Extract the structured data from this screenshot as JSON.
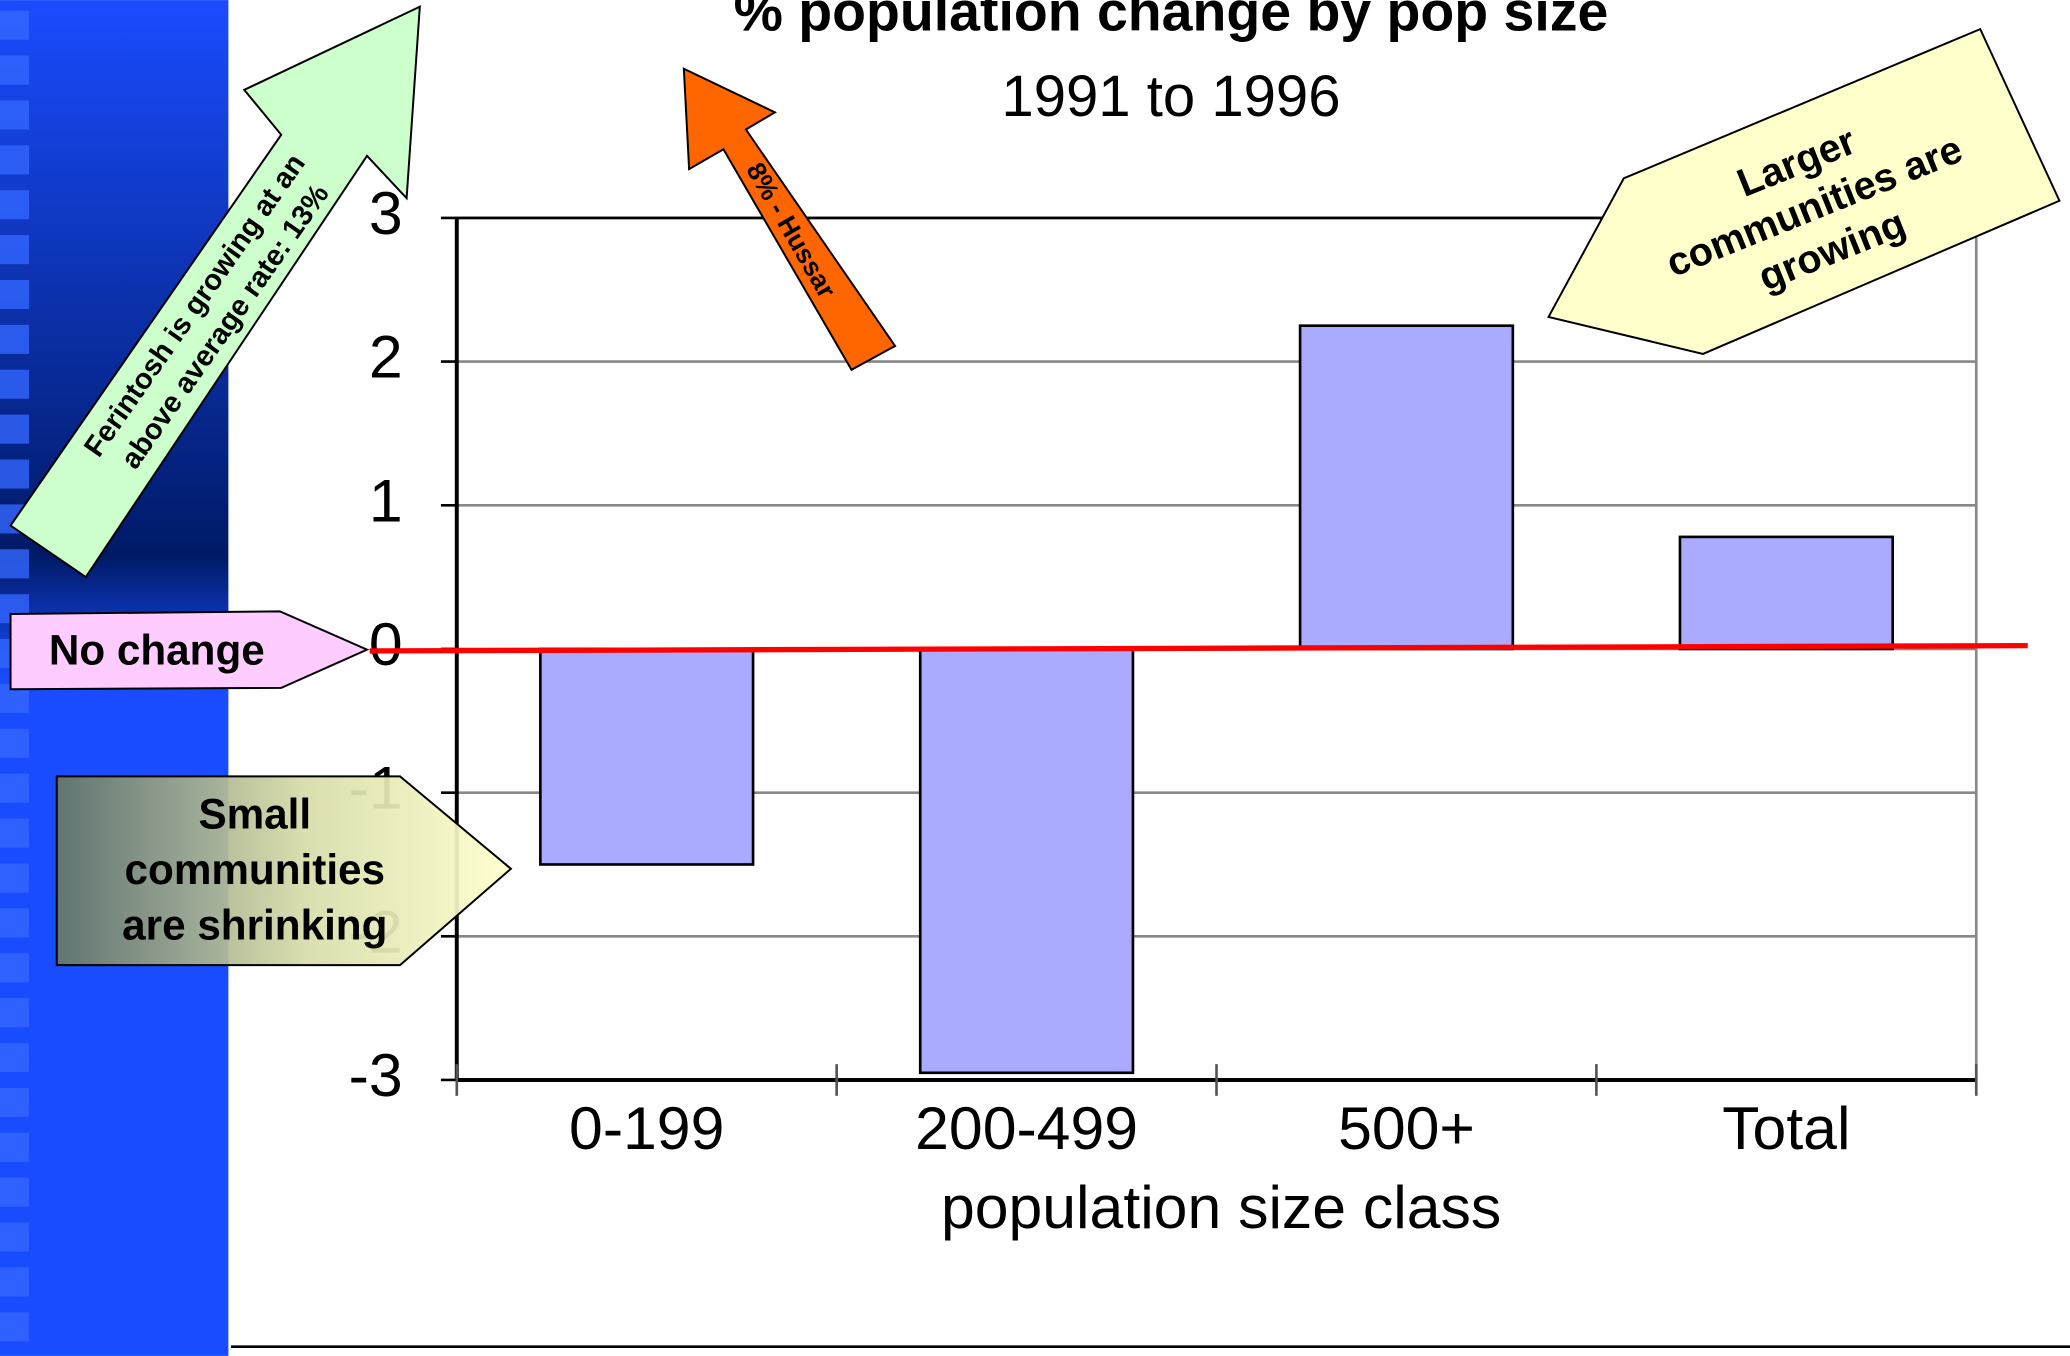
{
  "chart_data": {
    "type": "bar",
    "title": "% population change by pop size",
    "subtitle": "1991 to 1996",
    "x_label": "population size class",
    "categories": [
      "0-199",
      "200-499",
      "500+",
      "Total"
    ],
    "values": [
      -1.5,
      -2.95,
      2.25,
      0.78
    ],
    "color": "#aaaaff",
    "ylim": [
      -3,
      3
    ],
    "yticks": [
      -3,
      -2,
      -1,
      0,
      1,
      2,
      3
    ],
    "grid": true,
    "annotations": [
      {
        "lines": [
          "Ferintosh is growing at an",
          "above average rate: 13%"
        ]
      },
      {
        "lines": [
          "8% - Hussar"
        ]
      },
      {
        "lines": [
          "Larger",
          "communities are",
          "growing"
        ]
      },
      {
        "lines": [
          "No change"
        ]
      },
      {
        "lines": [
          "Small",
          "communities",
          "are shrinking"
        ]
      }
    ]
  }
}
